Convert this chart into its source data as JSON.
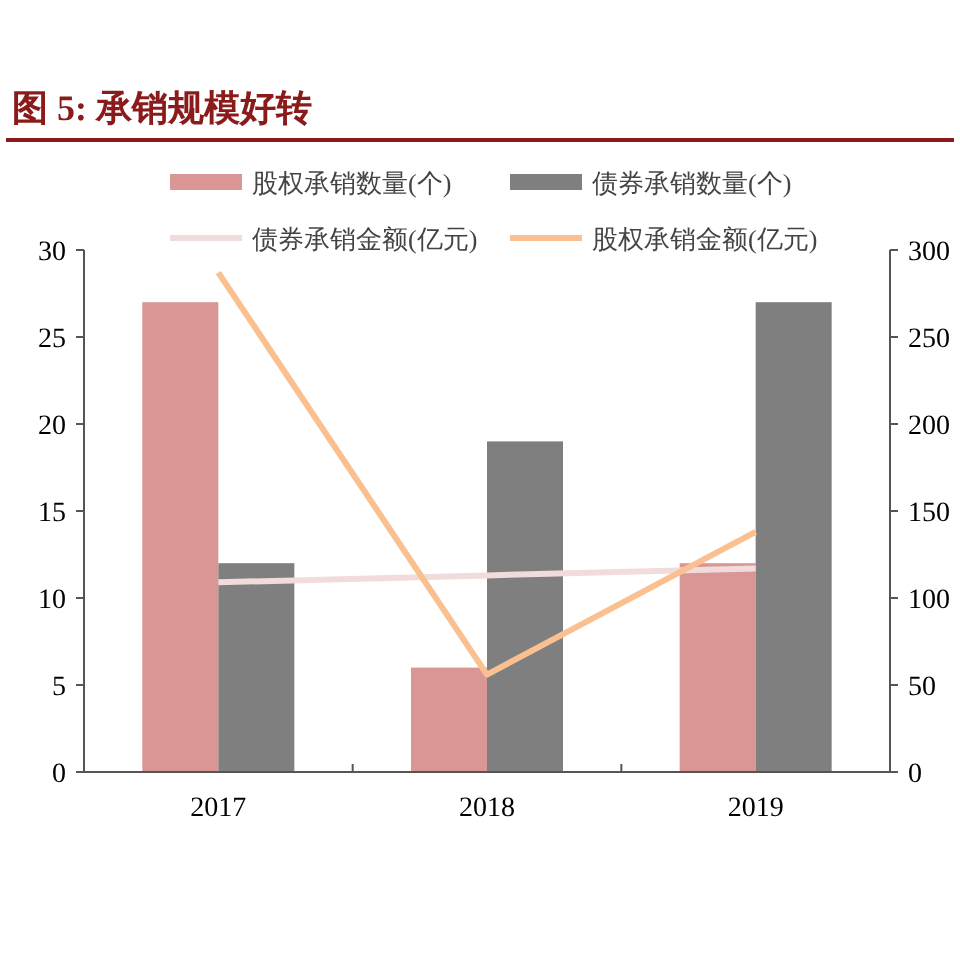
{
  "chart_data": {
    "type": "bar",
    "title": "图 5:  承销规模好转",
    "categories": [
      "2017",
      "2018",
      "2019"
    ],
    "series": [
      {
        "name": "股权承销数量(个)",
        "color": "#d99694",
        "values": [
          27,
          6,
          12
        ]
      },
      {
        "name": "债券承销数量(个)",
        "color": "#7f7f7f",
        "values": [
          12,
          19,
          27
        ]
      },
      {
        "name": "债券承销金额(亿元)",
        "type": "line",
        "axis": "y2",
        "color": "#f2dcdb",
        "values": [
          109,
          113,
          117
        ]
      },
      {
        "name": "股权承销金额(亿元)",
        "type": "line",
        "axis": "y2",
        "color": "#fac090",
        "values": [
          287,
          56,
          138
        ]
      }
    ],
    "ylim": [
      0,
      30
    ],
    "yticks": [
      0,
      5,
      10,
      15,
      20,
      25,
      30
    ],
    "y2lim": [
      0,
      300
    ],
    "y2ticks": [
      0,
      50,
      100,
      150,
      200,
      250,
      300
    ],
    "grid": false,
    "legend": "top",
    "line_style": "solid"
  }
}
